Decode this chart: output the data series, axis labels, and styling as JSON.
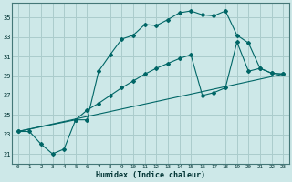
{
  "xlabel": "Humidex (Indice chaleur)",
  "bg_color": "#cde8e8",
  "grid_color": "#aacccc",
  "line_color": "#006666",
  "xlim": [
    -0.5,
    23.5
  ],
  "ylim": [
    20.0,
    36.5
  ],
  "yticks": [
    21,
    23,
    25,
    27,
    29,
    31,
    33,
    35
  ],
  "xticks": [
    0,
    1,
    2,
    3,
    4,
    5,
    6,
    7,
    8,
    9,
    10,
    11,
    12,
    13,
    14,
    15,
    16,
    17,
    18,
    19,
    20,
    21,
    22,
    23
  ],
  "line1_x": [
    0,
    1,
    2,
    3,
    4,
    5,
    6,
    7,
    8,
    9,
    10,
    11,
    12,
    13,
    14,
    15,
    16,
    17,
    18,
    19,
    20,
    21,
    22,
    23
  ],
  "line1_y": [
    23.3,
    23.3,
    22.0,
    21.0,
    21.5,
    24.5,
    24.5,
    29.5,
    31.2,
    32.8,
    33.2,
    34.3,
    34.2,
    34.8,
    35.5,
    35.7,
    35.3,
    35.2,
    35.7,
    33.2,
    32.4,
    29.8,
    29.3,
    29.2
  ],
  "line2_x": [
    0,
    5,
    6,
    7,
    8,
    9,
    10,
    11,
    12,
    13,
    14,
    15,
    16,
    17,
    18,
    19,
    20,
    21,
    22,
    23
  ],
  "line2_y": [
    23.3,
    24.5,
    25.5,
    26.2,
    27.0,
    27.8,
    28.5,
    29.2,
    29.8,
    30.3,
    30.8,
    31.2,
    27.0,
    27.3,
    27.8,
    32.5,
    29.5,
    29.8,
    29.3,
    29.2
  ],
  "line3_x": [
    0,
    23
  ],
  "line3_y": [
    23.3,
    29.2
  ]
}
